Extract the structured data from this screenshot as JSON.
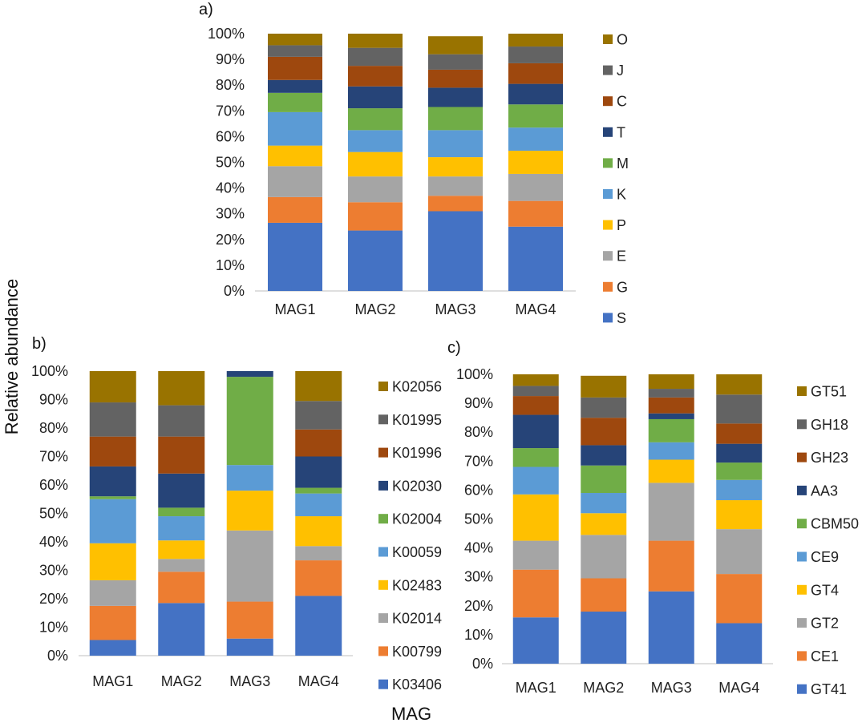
{
  "ylabel": "Relative abundance",
  "xlabel": "MAG",
  "chart_data": [
    {
      "type": "bar",
      "stacked": true,
      "panel": "a)",
      "categories": [
        "MAG1",
        "MAG2",
        "MAG3",
        "MAG4"
      ],
      "ylim": [
        0,
        100
      ],
      "yticks": [
        "0%",
        "10%",
        "20%",
        "30%",
        "40%",
        "50%",
        "60%",
        "70%",
        "80%",
        "90%",
        "100%"
      ],
      "legend_position": "right",
      "series": [
        {
          "name": "S",
          "color": "#4472C4",
          "values": [
            26.5,
            23.5,
            31,
            25
          ]
        },
        {
          "name": "G",
          "color": "#ED7D31",
          "values": [
            10,
            11,
            6,
            10
          ]
        },
        {
          "name": "E",
          "color": "#A5A5A5",
          "values": [
            12,
            10,
            7.5,
            10.5
          ]
        },
        {
          "name": "P",
          "color": "#FFC000",
          "values": [
            8,
            9.5,
            7.5,
            9
          ]
        },
        {
          "name": "K",
          "color": "#5B9BD5",
          "values": [
            13,
            8.5,
            10.5,
            9
          ]
        },
        {
          "name": "M",
          "color": "#70AD47",
          "values": [
            7.5,
            8.5,
            9,
            9
          ]
        },
        {
          "name": "T",
          "color": "#264478",
          "values": [
            5,
            8.5,
            7.5,
            8
          ]
        },
        {
          "name": "C",
          "color": "#9E480E",
          "values": [
            9,
            8,
            7,
            8
          ]
        },
        {
          "name": "J",
          "color": "#636363",
          "values": [
            4.5,
            7,
            6,
            6.5
          ]
        },
        {
          "name": "O",
          "color": "#997300",
          "values": [
            4.5,
            5.5,
            7,
            5
          ]
        }
      ]
    },
    {
      "type": "bar",
      "stacked": true,
      "panel": "b)",
      "categories": [
        "MAG1",
        "MAG2",
        "MAG3",
        "MAG4"
      ],
      "ylim": [
        0,
        100
      ],
      "yticks": [
        "0%",
        "10%",
        "20%",
        "30%",
        "40%",
        "50%",
        "60%",
        "70%",
        "80%",
        "90%",
        "100%"
      ],
      "legend_position": "right",
      "series": [
        {
          "name": "K03406",
          "color": "#4472C4",
          "values": [
            5.5,
            18.5,
            6,
            21
          ]
        },
        {
          "name": "K00799",
          "color": "#ED7D31",
          "values": [
            12,
            11,
            13,
            12.5
          ]
        },
        {
          "name": "K02014",
          "color": "#A5A5A5",
          "values": [
            9,
            4.5,
            25,
            5
          ]
        },
        {
          "name": "K02483",
          "color": "#FFC000",
          "values": [
            13,
            6.5,
            14,
            10.5
          ]
        },
        {
          "name": "K00059",
          "color": "#5B9BD5",
          "values": [
            15.5,
            8.5,
            9,
            8
          ]
        },
        {
          "name": "K02004",
          "color": "#70AD47",
          "values": [
            1,
            3,
            31,
            2
          ]
        },
        {
          "name": "K02030",
          "color": "#264478",
          "values": [
            10.5,
            12,
            2,
            11
          ]
        },
        {
          "name": "K01996",
          "color": "#9E480E",
          "values": [
            10.5,
            13,
            0,
            9.5
          ]
        },
        {
          "name": "K01995",
          "color": "#636363",
          "values": [
            12,
            11,
            0,
            10
          ]
        },
        {
          "name": "K02056",
          "color": "#997300",
          "values": [
            11,
            12,
            0,
            10.5
          ]
        }
      ]
    },
    {
      "type": "bar",
      "stacked": true,
      "panel": "c)",
      "categories": [
        "MAG1",
        "MAG2",
        "MAG3",
        "MAG4"
      ],
      "ylim": [
        0,
        100
      ],
      "yticks": [
        "0%",
        "10%",
        "20%",
        "30%",
        "40%",
        "50%",
        "60%",
        "70%",
        "80%",
        "90%",
        "100%"
      ],
      "legend_position": "right",
      "series": [
        {
          "name": "GT41",
          "color": "#4472C4",
          "values": [
            16,
            18,
            25,
            14
          ]
        },
        {
          "name": "CE1",
          "color": "#ED7D31",
          "values": [
            16.5,
            11.5,
            17.5,
            17
          ]
        },
        {
          "name": "GT2",
          "color": "#A5A5A5",
          "values": [
            10,
            15,
            20,
            15.5
          ]
        },
        {
          "name": "GT4",
          "color": "#FFC000",
          "values": [
            16,
            7.5,
            8,
            10
          ]
        },
        {
          "name": "CE9",
          "color": "#5B9BD5",
          "values": [
            9.5,
            7,
            6,
            7
          ]
        },
        {
          "name": "CBM50",
          "color": "#70AD47",
          "values": [
            6.5,
            9.5,
            8,
            6
          ]
        },
        {
          "name": "AA3",
          "color": "#264478",
          "values": [
            11.5,
            7,
            2,
            6.5
          ]
        },
        {
          "name": "GH23",
          "color": "#9E480E",
          "values": [
            6.5,
            9.5,
            5.5,
            7
          ]
        },
        {
          "name": "GH18",
          "color": "#636363",
          "values": [
            3.5,
            7,
            3,
            10
          ]
        },
        {
          "name": "GT51",
          "color": "#997300",
          "values": [
            4,
            7.5,
            5,
            7
          ]
        }
      ]
    }
  ]
}
